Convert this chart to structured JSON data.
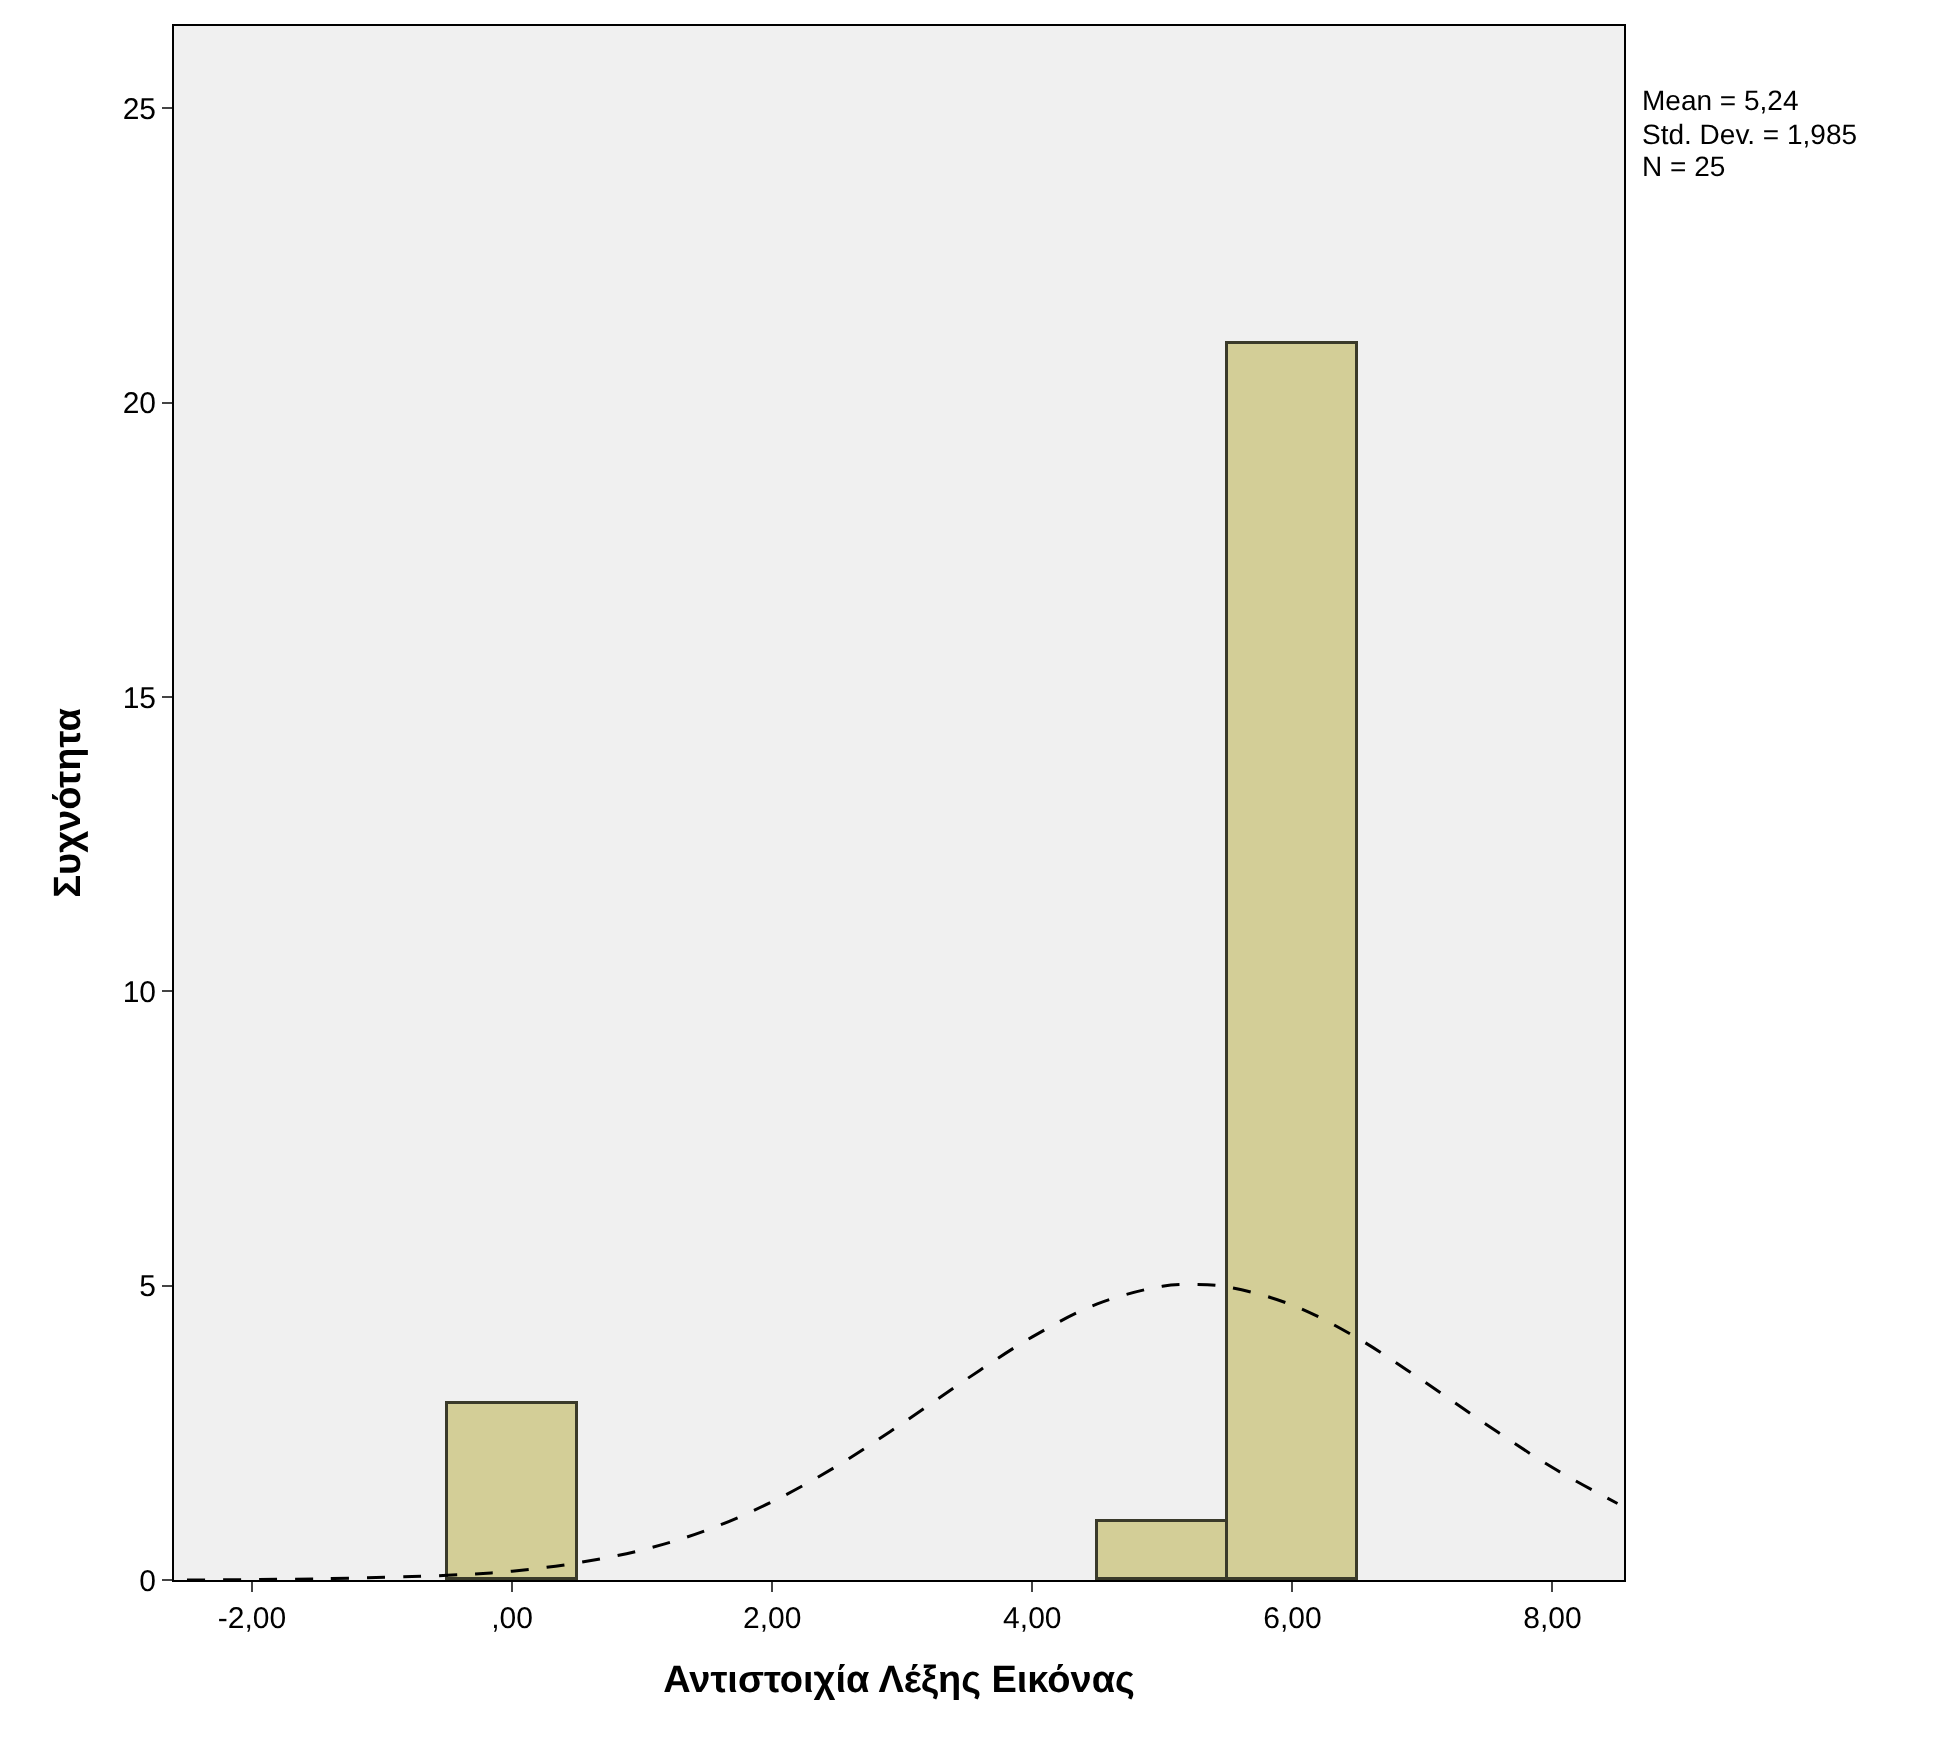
{
  "chart_data": {
    "type": "histogram",
    "xlabel": "Αντιστοιχία Λέξης Εικόνας",
    "ylabel": "Συχνότητα",
    "bins": [
      -0.5,
      0.5,
      1.5,
      2.5,
      3.5,
      4.5,
      5.5,
      6.5
    ],
    "values": [
      3,
      0,
      0,
      0,
      0,
      1,
      21
    ],
    "color": "#d3ce97",
    "series": [
      {
        "type": "line",
        "color": "#000000",
        "line_style": "dashed",
        "marker": "none",
        "x": [
          -2.5,
          -1.5,
          -0.5,
          0,
          0.5,
          1,
          1.5,
          2,
          2.5,
          3,
          3.5,
          4,
          4.5,
          5,
          5.24,
          5.5,
          6,
          6.5,
          7,
          7.5,
          8,
          8.5
        ],
        "values": [
          0,
          0.02,
          0.08,
          0.15,
          0.29,
          0.51,
          0.85,
          1.33,
          1.94,
          2.66,
          3.42,
          4.13,
          4.69,
          4.99,
          5.02,
          4.98,
          4.67,
          4.11,
          3.39,
          2.63,
          1.91,
          1.3
        ]
      }
    ],
    "xlim": [
      -2.6,
      8.55
    ],
    "ylim": [
      0,
      26.4
    ],
    "xticks": [
      {
        "value": -2,
        "label": "-2,00"
      },
      {
        "value": 0,
        "label": ",00"
      },
      {
        "value": 2,
        "label": "2,00"
      },
      {
        "value": 4,
        "label": "4,00"
      },
      {
        "value": 6,
        "label": "6,00"
      },
      {
        "value": 8,
        "label": "8,00"
      }
    ],
    "yticks": [
      0,
      5,
      10,
      15,
      20,
      25
    ],
    "annotations": [
      "Mean = 5,24",
      "Std. Dev. = 1,985",
      "N = 25"
    ]
  }
}
